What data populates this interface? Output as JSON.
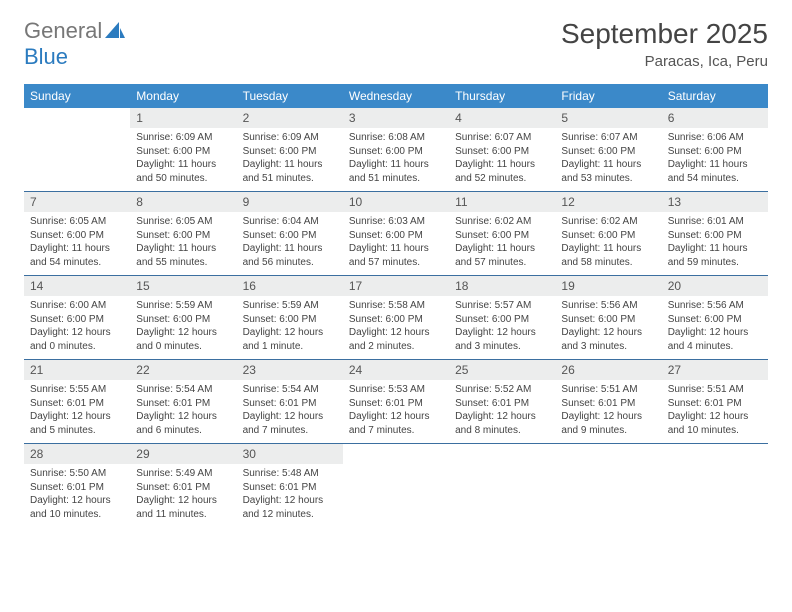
{
  "logo": {
    "general": "General",
    "blue": "Blue"
  },
  "title": "September 2025",
  "location": "Paracas, Ica, Peru",
  "colors": {
    "header_bg": "#3b89c9",
    "header_text": "#ffffff",
    "daynum_bg": "#eceded",
    "row_border": "#3b6fa0",
    "logo_blue": "#2b7bbf"
  },
  "weekdays": [
    "Sunday",
    "Monday",
    "Tuesday",
    "Wednesday",
    "Thursday",
    "Friday",
    "Saturday"
  ],
  "start_offset": 1,
  "days": [
    {
      "n": 1,
      "sr": "6:09 AM",
      "ss": "6:00 PM",
      "dl": "11 hours and 50 minutes."
    },
    {
      "n": 2,
      "sr": "6:09 AM",
      "ss": "6:00 PM",
      "dl": "11 hours and 51 minutes."
    },
    {
      "n": 3,
      "sr": "6:08 AM",
      "ss": "6:00 PM",
      "dl": "11 hours and 51 minutes."
    },
    {
      "n": 4,
      "sr": "6:07 AM",
      "ss": "6:00 PM",
      "dl": "11 hours and 52 minutes."
    },
    {
      "n": 5,
      "sr": "6:07 AM",
      "ss": "6:00 PM",
      "dl": "11 hours and 53 minutes."
    },
    {
      "n": 6,
      "sr": "6:06 AM",
      "ss": "6:00 PM",
      "dl": "11 hours and 54 minutes."
    },
    {
      "n": 7,
      "sr": "6:05 AM",
      "ss": "6:00 PM",
      "dl": "11 hours and 54 minutes."
    },
    {
      "n": 8,
      "sr": "6:05 AM",
      "ss": "6:00 PM",
      "dl": "11 hours and 55 minutes."
    },
    {
      "n": 9,
      "sr": "6:04 AM",
      "ss": "6:00 PM",
      "dl": "11 hours and 56 minutes."
    },
    {
      "n": 10,
      "sr": "6:03 AM",
      "ss": "6:00 PM",
      "dl": "11 hours and 57 minutes."
    },
    {
      "n": 11,
      "sr": "6:02 AM",
      "ss": "6:00 PM",
      "dl": "11 hours and 57 minutes."
    },
    {
      "n": 12,
      "sr": "6:02 AM",
      "ss": "6:00 PM",
      "dl": "11 hours and 58 minutes."
    },
    {
      "n": 13,
      "sr": "6:01 AM",
      "ss": "6:00 PM",
      "dl": "11 hours and 59 minutes."
    },
    {
      "n": 14,
      "sr": "6:00 AM",
      "ss": "6:00 PM",
      "dl": "12 hours and 0 minutes."
    },
    {
      "n": 15,
      "sr": "5:59 AM",
      "ss": "6:00 PM",
      "dl": "12 hours and 0 minutes."
    },
    {
      "n": 16,
      "sr": "5:59 AM",
      "ss": "6:00 PM",
      "dl": "12 hours and 1 minute."
    },
    {
      "n": 17,
      "sr": "5:58 AM",
      "ss": "6:00 PM",
      "dl": "12 hours and 2 minutes."
    },
    {
      "n": 18,
      "sr": "5:57 AM",
      "ss": "6:00 PM",
      "dl": "12 hours and 3 minutes."
    },
    {
      "n": 19,
      "sr": "5:56 AM",
      "ss": "6:00 PM",
      "dl": "12 hours and 3 minutes."
    },
    {
      "n": 20,
      "sr": "5:56 AM",
      "ss": "6:00 PM",
      "dl": "12 hours and 4 minutes."
    },
    {
      "n": 21,
      "sr": "5:55 AM",
      "ss": "6:01 PM",
      "dl": "12 hours and 5 minutes."
    },
    {
      "n": 22,
      "sr": "5:54 AM",
      "ss": "6:01 PM",
      "dl": "12 hours and 6 minutes."
    },
    {
      "n": 23,
      "sr": "5:54 AM",
      "ss": "6:01 PM",
      "dl": "12 hours and 7 minutes."
    },
    {
      "n": 24,
      "sr": "5:53 AM",
      "ss": "6:01 PM",
      "dl": "12 hours and 7 minutes."
    },
    {
      "n": 25,
      "sr": "5:52 AM",
      "ss": "6:01 PM",
      "dl": "12 hours and 8 minutes."
    },
    {
      "n": 26,
      "sr": "5:51 AM",
      "ss": "6:01 PM",
      "dl": "12 hours and 9 minutes."
    },
    {
      "n": 27,
      "sr": "5:51 AM",
      "ss": "6:01 PM",
      "dl": "12 hours and 10 minutes."
    },
    {
      "n": 28,
      "sr": "5:50 AM",
      "ss": "6:01 PM",
      "dl": "12 hours and 10 minutes."
    },
    {
      "n": 29,
      "sr": "5:49 AM",
      "ss": "6:01 PM",
      "dl": "12 hours and 11 minutes."
    },
    {
      "n": 30,
      "sr": "5:48 AM",
      "ss": "6:01 PM",
      "dl": "12 hours and 12 minutes."
    }
  ],
  "labels": {
    "sunrise": "Sunrise:",
    "sunset": "Sunset:",
    "daylight": "Daylight:"
  }
}
